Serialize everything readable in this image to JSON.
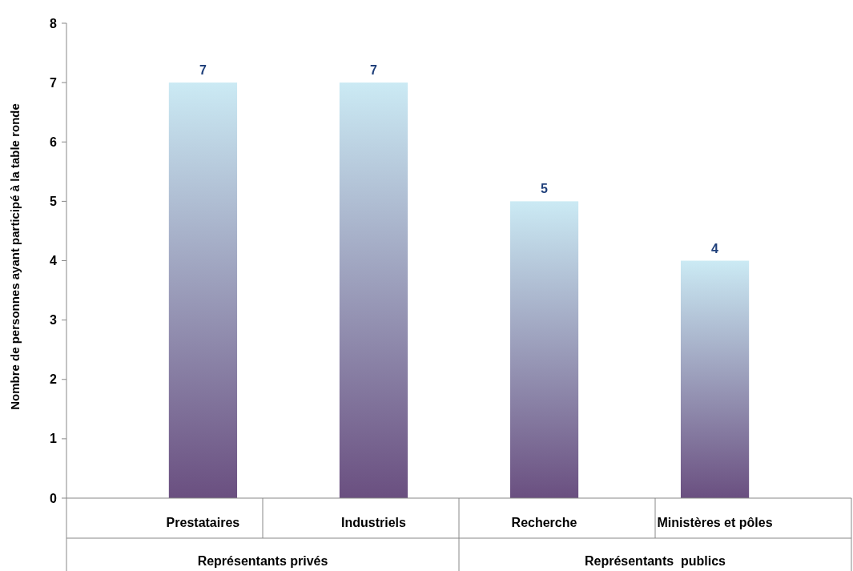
{
  "chart_data": {
    "type": "bar",
    "ylabel": "Nombre de personnes ayant participé à la table ronde",
    "categories": [
      "Prestataires",
      "Industriels",
      "Recherche",
      "Ministères et pôles"
    ],
    "values": [
      7,
      7,
      5,
      4
    ],
    "color": "#6a4f80",
    "data_labels": true,
    "ylim": [
      0,
      8
    ],
    "yticks": [
      0,
      1,
      2,
      3,
      4,
      5,
      6,
      7,
      8
    ],
    "grid": false,
    "annotations": [
      "Représentants privés",
      "Représentants  publics"
    ]
  }
}
